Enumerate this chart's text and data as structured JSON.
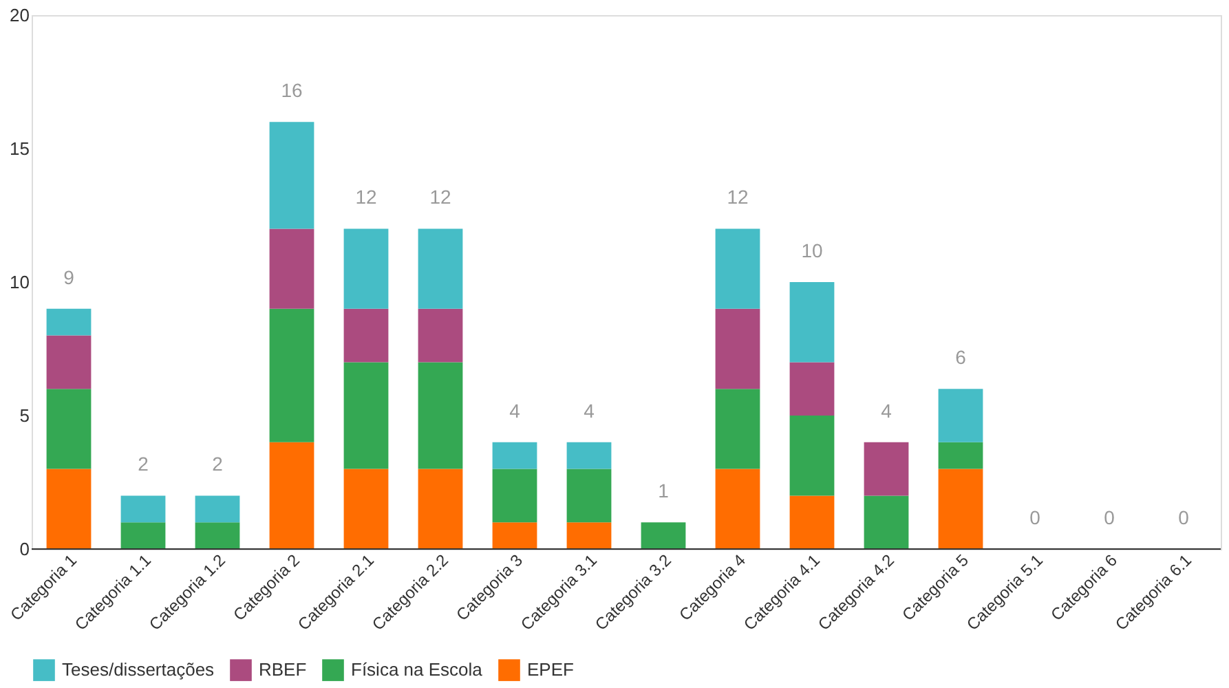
{
  "chart_data": {
    "type": "bar",
    "stacked": true,
    "categories": [
      "Categoria 1",
      "Categoria 1.1",
      "Categoria 1.2",
      "Categoria 2",
      "Categoria 2.1",
      "Categoria 2.2",
      "Categoria 3",
      "Categoria 3.1",
      "Categoria 3.2",
      "Categoria 4",
      "Categoria 4.1",
      "Categoria 4.2",
      "Categoria 5",
      "Categoria 5.1",
      "Categoria 6",
      "Categoria 6.1"
    ],
    "series": [
      {
        "name": "EPEF",
        "color": "#ff6d01",
        "values": [
          3,
          0,
          0,
          4,
          3,
          3,
          1,
          1,
          0,
          3,
          2,
          0,
          3,
          0,
          0,
          0
        ]
      },
      {
        "name": "Física na Escola",
        "color": "#34a853",
        "values": [
          3,
          1,
          1,
          5,
          4,
          4,
          2,
          2,
          1,
          3,
          3,
          2,
          1,
          0,
          0,
          0
        ]
      },
      {
        "name": "RBEF",
        "color": "#ab4b7f",
        "values": [
          2,
          0,
          0,
          3,
          2,
          2,
          0,
          0,
          0,
          3,
          2,
          2,
          0,
          0,
          0,
          0
        ]
      },
      {
        "name": "Teses/dissertações",
        "color": "#46bdc6",
        "values": [
          1,
          1,
          1,
          4,
          3,
          3,
          1,
          1,
          0,
          3,
          3,
          0,
          2,
          0,
          0,
          0
        ]
      }
    ],
    "totals": [
      "9",
      "2",
      "2",
      "16",
      "12",
      "12",
      "4",
      "4",
      "1",
      "12",
      "10",
      "4",
      "6",
      "0",
      "0",
      "0"
    ],
    "ylim": [
      0,
      20
    ],
    "yticks": [
      0,
      5,
      10,
      15,
      20
    ],
    "grid": false,
    "legend": "bottom"
  }
}
